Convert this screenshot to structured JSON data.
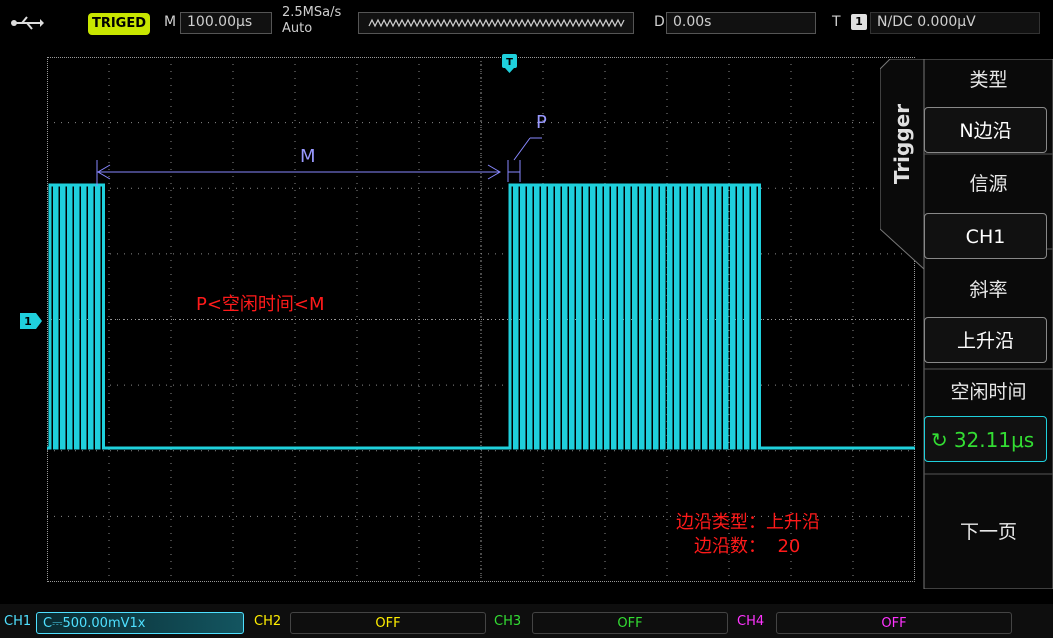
{
  "colors": {
    "trace": "#1fd0dc",
    "trigger_bg": "#c8e600",
    "annotation_red": "#ff1a1a",
    "marker_blue": "#8888ff",
    "ch1": "#4fe0ff",
    "ch2": "#ffee00",
    "ch3": "#33dd33",
    "ch4": "#ff33ff"
  },
  "topbar": {
    "usb_icon": "usb-icon",
    "trig_status": "TRIGED",
    "m_label": "M",
    "timebase": "100.00μs",
    "sample_rate": "2.5MSa/s",
    "acq_mode": "Auto",
    "d_label": "D",
    "delay": "0.00s",
    "t_label": "T",
    "t_channel": "1",
    "trig_info": "N/DC 0.000μV"
  },
  "screen": {
    "trigger_marker": "T",
    "ch1_marker": "1",
    "annotation_m": "M",
    "annotation_p": "P",
    "condition": "P<空闲时间<M",
    "edge_type_line": "边沿类型：上升沿",
    "edge_count_line": "边沿数：  20"
  },
  "menu": {
    "tab": "Trigger",
    "items": [
      {
        "title": "类型",
        "value": "N边沿"
      },
      {
        "title": "信源",
        "value": "CH1"
      },
      {
        "title": "斜率",
        "value": "上升沿"
      },
      {
        "title": "空闲时间",
        "value": "32.11μs"
      }
    ],
    "next_page": "下一页"
  },
  "channels": [
    {
      "name": "CH1",
      "value": "C⎓500.00mV1x"
    },
    {
      "name": "CH2",
      "value": "OFF"
    },
    {
      "name": "CH3",
      "value": "OFF"
    },
    {
      "name": "CH4",
      "value": "OFF"
    }
  ]
}
